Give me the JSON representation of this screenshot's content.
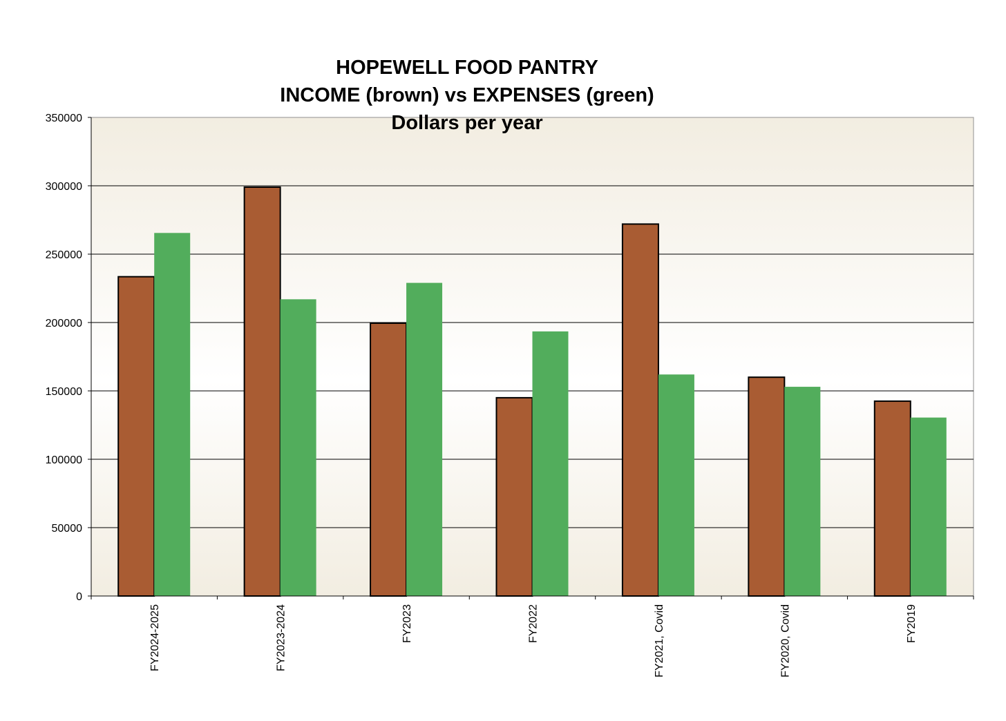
{
  "chart_data": {
    "type": "bar",
    "title_lines": [
      "HOPEWELL FOOD PANTRY",
      "INCOME (brown) vs EXPENSES (green)",
      "Dollars per year"
    ],
    "categories": [
      "FY2024-2025",
      "FY2023-2024",
      "FY2023",
      "FY2022",
      "FY2021, Covid",
      "FY2020, Covid",
      "FY2019"
    ],
    "series": [
      {
        "values": [
          233500,
          299000,
          199500,
          145000,
          272000,
          160000,
          142500
        ],
        "color": "#a95c33",
        "outlined": true
      },
      {
        "values": [
          265500,
          217000,
          229000,
          193500,
          162000,
          153000,
          130500
        ],
        "color": "#52ad5c",
        "outlined": false
      }
    ],
    "ylim": [
      0,
      350000
    ],
    "yticks": [
      0,
      50000,
      100000,
      150000,
      200000,
      250000,
      300000,
      350000
    ],
    "xlabel": "",
    "ylabel": "",
    "grid": true,
    "plot_background": [
      "#f2ede1",
      "#ffffff",
      "#f2ede1"
    ]
  }
}
